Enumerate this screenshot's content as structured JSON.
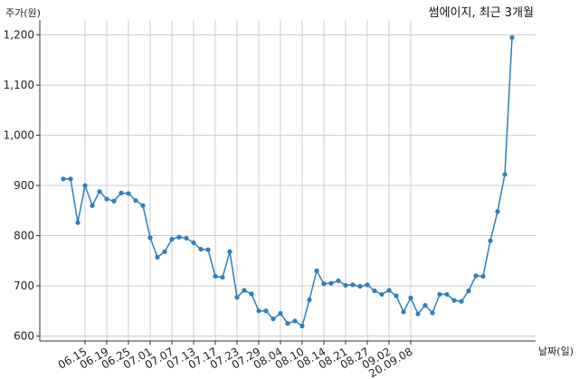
{
  "chart_data": {
    "type": "line",
    "title": "썸에이지, 최근 3개월",
    "ylabel": "주가(원)",
    "xlabel": "날짜(일)",
    "ylim": [
      590,
      1230
    ],
    "yticks": [
      600,
      700,
      800,
      900,
      1000,
      1100,
      1200
    ],
    "ytick_labels": [
      "600",
      "700",
      "800",
      "900",
      "1,000",
      "1,100",
      "1,200"
    ],
    "xtick_labels": [
      "06.15",
      "06.19",
      "06.25",
      "07.01",
      "07.07",
      "07.13",
      "07.17",
      "07.23",
      "07.29",
      "08.04",
      "08.10",
      "08.14",
      "08.21",
      "08.27",
      "09.02",
      "20.09.08"
    ],
    "xtick_indices": [
      3,
      6,
      9,
      12,
      15,
      18,
      21,
      24,
      27,
      30,
      33,
      36,
      39,
      42,
      45,
      48
    ],
    "grid": true,
    "series": [
      {
        "color": "#2e7fb8",
        "values": [
          913,
          913,
          826,
          900,
          860,
          888,
          873,
          869,
          885,
          884,
          870,
          860,
          796,
          757,
          768,
          793,
          797,
          795,
          786,
          773,
          772,
          719,
          717,
          768,
          677,
          691,
          684,
          650,
          650,
          634,
          645,
          625,
          630,
          620,
          672,
          730,
          704,
          705,
          710,
          701,
          702,
          699,
          702,
          690,
          683,
          691,
          680,
          648,
          676,
          644,
          661,
          646,
          683,
          683,
          671,
          669,
          690,
          720,
          719,
          790,
          848,
          922,
          1195
        ]
      }
    ]
  }
}
